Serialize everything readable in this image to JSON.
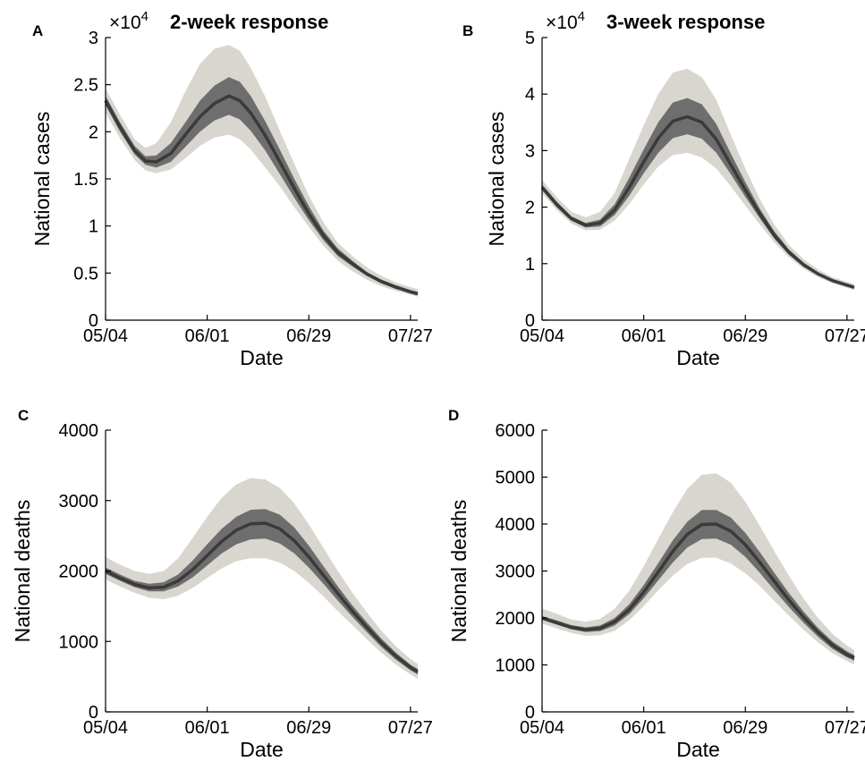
{
  "colors": {
    "outer_band": "#d8d6cf",
    "inner_band": "#6e6e6e",
    "median_line": "#3a3a3a"
  },
  "chart_data": [
    {
      "panel": "A",
      "title": "2-week response",
      "type": "area",
      "xlabel": "Date",
      "ylabel": "National cases",
      "exponent_label": "×10",
      "exponent_power": "4",
      "x_ticks": [
        "05/04",
        "06/01",
        "06/29",
        "07/27"
      ],
      "x_tick_days": [
        0,
        28,
        56,
        84
      ],
      "xlim": [
        0,
        86
      ],
      "y_ticks": [
        "0",
        "0.5",
        "1",
        "1.5",
        "2",
        "2.5",
        "3"
      ],
      "ylim": [
        0,
        3
      ],
      "x": [
        0,
        4,
        8,
        11,
        14,
        18,
        22,
        26,
        30,
        34,
        37,
        40,
        44,
        48,
        52,
        56,
        60,
        64,
        68,
        72,
        76,
        80,
        84,
        86
      ],
      "median": [
        2.33,
        2.05,
        1.8,
        1.69,
        1.68,
        1.77,
        1.97,
        2.16,
        2.3,
        2.38,
        2.33,
        2.2,
        1.96,
        1.68,
        1.4,
        1.13,
        0.9,
        0.72,
        0.6,
        0.49,
        0.41,
        0.35,
        0.3,
        0.28
      ],
      "inner_lower": [
        2.28,
        2.0,
        1.76,
        1.65,
        1.62,
        1.68,
        1.84,
        2.0,
        2.12,
        2.18,
        2.13,
        2.01,
        1.8,
        1.55,
        1.3,
        1.06,
        0.85,
        0.68,
        0.57,
        0.47,
        0.39,
        0.33,
        0.29,
        0.27
      ],
      "inner_upper": [
        2.38,
        2.1,
        1.85,
        1.74,
        1.75,
        1.88,
        2.1,
        2.33,
        2.49,
        2.58,
        2.53,
        2.38,
        2.11,
        1.81,
        1.5,
        1.21,
        0.95,
        0.76,
        0.63,
        0.51,
        0.43,
        0.37,
        0.32,
        0.3
      ],
      "outer_lower": [
        2.2,
        1.93,
        1.7,
        1.59,
        1.56,
        1.6,
        1.72,
        1.85,
        1.94,
        1.97,
        1.92,
        1.81,
        1.62,
        1.42,
        1.2,
        0.99,
        0.79,
        0.63,
        0.52,
        0.43,
        0.36,
        0.31,
        0.27,
        0.25
      ],
      "outer_upper": [
        2.46,
        2.18,
        1.92,
        1.83,
        1.88,
        2.1,
        2.43,
        2.72,
        2.88,
        2.92,
        2.86,
        2.68,
        2.37,
        2.01,
        1.66,
        1.32,
        1.04,
        0.82,
        0.68,
        0.56,
        0.47,
        0.4,
        0.35,
        0.33
      ]
    },
    {
      "panel": "B",
      "title": "3-week response",
      "type": "area",
      "xlabel": "Date",
      "ylabel": "National cases",
      "exponent_label": "×10",
      "exponent_power": "4",
      "x_ticks": [
        "05/04",
        "06/01",
        "06/29",
        "07/27"
      ],
      "x_tick_days": [
        0,
        28,
        56,
        84
      ],
      "xlim": [
        0,
        86
      ],
      "y_ticks": [
        "0",
        "1",
        "2",
        "3",
        "4",
        "5"
      ],
      "ylim": [
        0,
        5
      ],
      "x": [
        0,
        4,
        8,
        12,
        16,
        20,
        24,
        28,
        32,
        36,
        40,
        44,
        48,
        52,
        56,
        60,
        64,
        68,
        72,
        76,
        80,
        84,
        86
      ],
      "median": [
        2.35,
        2.05,
        1.8,
        1.68,
        1.72,
        1.95,
        2.35,
        2.8,
        3.22,
        3.52,
        3.6,
        3.5,
        3.2,
        2.75,
        2.3,
        1.88,
        1.5,
        1.2,
        0.98,
        0.82,
        0.7,
        0.62,
        0.58
      ],
      "inner_lower": [
        2.3,
        2.0,
        1.76,
        1.64,
        1.66,
        1.86,
        2.2,
        2.6,
        2.96,
        3.22,
        3.29,
        3.21,
        2.96,
        2.58,
        2.18,
        1.8,
        1.44,
        1.16,
        0.95,
        0.8,
        0.68,
        0.6,
        0.56
      ],
      "inner_upper": [
        2.4,
        2.1,
        1.84,
        1.72,
        1.78,
        2.05,
        2.52,
        3.02,
        3.5,
        3.85,
        3.93,
        3.82,
        3.47,
        2.95,
        2.44,
        1.97,
        1.57,
        1.25,
        1.02,
        0.85,
        0.72,
        0.64,
        0.6
      ],
      "outer_lower": [
        2.25,
        1.95,
        1.71,
        1.59,
        1.6,
        1.76,
        2.05,
        2.4,
        2.72,
        2.92,
        2.96,
        2.88,
        2.68,
        2.37,
        2.02,
        1.69,
        1.37,
        1.11,
        0.91,
        0.76,
        0.65,
        0.57,
        0.53
      ],
      "outer_upper": [
        2.48,
        2.18,
        1.92,
        1.82,
        1.92,
        2.25,
        2.85,
        3.45,
        4.0,
        4.38,
        4.45,
        4.3,
        3.9,
        3.28,
        2.68,
        2.14,
        1.69,
        1.33,
        1.08,
        0.9,
        0.76,
        0.68,
        0.64
      ]
    },
    {
      "panel": "C",
      "title": "",
      "type": "area",
      "xlabel": "Date",
      "ylabel": "National deaths",
      "exponent_label": "",
      "exponent_power": "",
      "x_ticks": [
        "05/04",
        "06/01",
        "06/29",
        "07/27"
      ],
      "x_tick_days": [
        0,
        28,
        56,
        84
      ],
      "xlim": [
        0,
        86
      ],
      "y_ticks": [
        "0",
        "1000",
        "2000",
        "3000",
        "4000"
      ],
      "ylim": [
        0,
        4000
      ],
      "x": [
        0,
        4,
        8,
        12,
        16,
        20,
        24,
        28,
        32,
        36,
        40,
        44,
        48,
        52,
        56,
        60,
        64,
        68,
        72,
        76,
        80,
        84,
        86
      ],
      "median": [
        2000,
        1900,
        1810,
        1760,
        1770,
        1860,
        2020,
        2220,
        2420,
        2580,
        2670,
        2680,
        2600,
        2430,
        2200,
        1940,
        1680,
        1430,
        1200,
        980,
        790,
        630,
        570
      ],
      "inner_lower": [
        1960,
        1860,
        1770,
        1710,
        1710,
        1780,
        1910,
        2080,
        2250,
        2380,
        2450,
        2460,
        2390,
        2250,
        2050,
        1820,
        1580,
        1350,
        1130,
        920,
        740,
        590,
        530
      ],
      "inner_upper": [
        2050,
        1950,
        1860,
        1820,
        1840,
        1950,
        2150,
        2380,
        2600,
        2770,
        2870,
        2880,
        2800,
        2620,
        2360,
        2070,
        1780,
        1510,
        1270,
        1040,
        840,
        670,
        610
      ],
      "outer_lower": [
        1880,
        1780,
        1690,
        1620,
        1600,
        1650,
        1760,
        1900,
        2040,
        2140,
        2180,
        2180,
        2120,
        2000,
        1830,
        1640,
        1430,
        1230,
        1030,
        840,
        670,
        530,
        470
      ],
      "outer_upper": [
        2200,
        2090,
        2000,
        1960,
        2000,
        2180,
        2470,
        2770,
        3040,
        3230,
        3320,
        3300,
        3180,
        2960,
        2660,
        2330,
        2000,
        1690,
        1410,
        1150,
        930,
        750,
        680
      ]
    },
    {
      "panel": "D",
      "title": "",
      "type": "area",
      "xlabel": "Date",
      "ylabel": "National deaths",
      "exponent_label": "",
      "exponent_power": "",
      "x_ticks": [
        "05/04",
        "06/01",
        "06/29",
        "07/27"
      ],
      "x_tick_days": [
        0,
        28,
        56,
        84
      ],
      "xlim": [
        0,
        86
      ],
      "y_ticks": [
        "0",
        "1000",
        "2000",
        "3000",
        "4000",
        "5000",
        "6000"
      ],
      "ylim": [
        0,
        6000
      ],
      "x": [
        0,
        4,
        8,
        12,
        16,
        20,
        24,
        28,
        32,
        36,
        40,
        44,
        48,
        52,
        56,
        60,
        64,
        68,
        72,
        76,
        80,
        84,
        86
      ],
      "median": [
        2000,
        1900,
        1800,
        1750,
        1780,
        1920,
        2180,
        2550,
        2980,
        3420,
        3780,
        3990,
        4000,
        3850,
        3560,
        3180,
        2780,
        2380,
        2020,
        1700,
        1420,
        1220,
        1150
      ],
      "inner_lower": [
        1960,
        1860,
        1760,
        1700,
        1720,
        1840,
        2080,
        2420,
        2800,
        3180,
        3500,
        3680,
        3690,
        3560,
        3300,
        2960,
        2590,
        2230,
        1900,
        1600,
        1340,
        1160,
        1090
      ],
      "inner_upper": [
        2040,
        1950,
        1850,
        1800,
        1840,
        2000,
        2290,
        2700,
        3170,
        3650,
        4050,
        4300,
        4300,
        4140,
        3810,
        3400,
        2960,
        2530,
        2140,
        1790,
        1500,
        1290,
        1210
      ],
      "outer_lower": [
        1880,
        1780,
        1680,
        1620,
        1630,
        1730,
        1950,
        2250,
        2590,
        2900,
        3150,
        3280,
        3280,
        3160,
        2950,
        2680,
        2360,
        2050,
        1750,
        1480,
        1250,
        1080,
        1010
      ],
      "outer_upper": [
        2200,
        2090,
        1970,
        1920,
        1980,
        2200,
        2580,
        3100,
        3680,
        4250,
        4750,
        5050,
        5080,
        4880,
        4470,
        3960,
        3420,
        2900,
        2420,
        2000,
        1660,
        1410,
        1320
      ]
    }
  ]
}
